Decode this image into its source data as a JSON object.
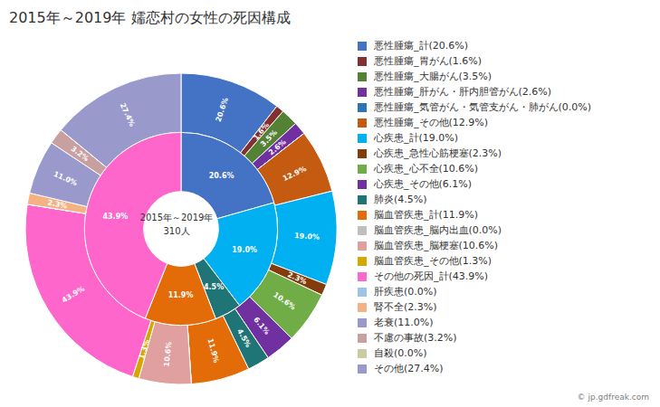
{
  "chart_data": {
    "type": "pie",
    "title": "2015年～2019年 嬬恋村の女性の死因構成",
    "center_text": [
      "2015年～2019年",
      "310人"
    ],
    "annotations": [
      "© jp.gdfreak.com"
    ],
    "data_labels": true,
    "legend": "right",
    "series": [
      {
        "categories": [
          "悪性腫瘍_計(20.6%)",
          "悪性腫瘍_胃がん(1.6%)",
          "悪性腫瘍_大腸がん(3.5%)",
          "悪性腫瘍_肝がん・肝内胆管がん(2.6%)",
          "悪性腫瘍_気管がん・気管支がん・肺がん(0.0%)",
          "悪性腫瘍_その他(12.9%)",
          "心疾患_計(19.0%)",
          "心疾患_急性心筋梗塞(2.3%)",
          "心疾患_心不全(10.6%)",
          "心疾患_その他(6.1%)",
          "肺炎(4.5%)",
          "脳血管疾患_計(11.9%)",
          "脳血管疾患_脳内出血(0.0%)",
          "脳血管疾患_脳梗塞(10.6%)",
          "脳血管疾患_その他(1.3%)",
          "その他の死因_計(43.9%)",
          "肝疾患(0.0%)",
          "腎不全(2.3%)",
          "老衰(11.0%)",
          "不慮の事故(3.2%)",
          "自殺(0.0%)",
          "その他(27.4%)"
        ],
        "values": [
          20.6,
          1.6,
          3.5,
          2.6,
          0.001,
          12.9,
          19.0,
          2.3,
          10.6,
          6.1,
          4.5,
          11.9,
          0.001,
          10.6,
          1.3,
          43.9,
          0.001,
          2.3,
          11.0,
          3.2,
          0.001,
          27.4
        ],
        "value_labels": [
          "20.6%",
          "1.6%",
          "3.5%",
          "2.6%",
          null,
          "12.9%",
          "19.0%",
          "2.3%",
          "10.6%",
          "6.1%",
          "4.5%",
          "11.9%",
          null,
          "10.6%",
          "1.3%",
          "43.9%",
          null,
          "2.3%",
          "11.0%",
          "3.2%",
          null,
          "27.4%"
        ],
        "colors": [
          "#4472C4",
          "#833030",
          "#548235",
          "#7030A0",
          "#2E74B5",
          "#C55A11",
          "#00B0F0",
          "#843C0C",
          "#70AD47",
          "#7030A0",
          "#1F7575",
          "#E36C09",
          "#BFBFBF",
          "#E0A0A0",
          "#D4A800",
          "#FF66CC",
          "#9DC3E6",
          "#F4B183",
          "#9999CC",
          "#C8A0A0",
          "#C9CCA0",
          "#9999CC"
        ]
      },
      {
        "values": [
          20.6,
          19.0,
          4.5,
          11.9,
          43.9
        ],
        "value_labels": [
          "20.6%",
          "19.0%",
          "4.5%",
          "11.9%",
          "43.9%"
        ],
        "colors": [
          "#4472C4",
          "#00B0F0",
          "#1F7575",
          "#E36C09",
          "#FF66CC"
        ]
      }
    ]
  }
}
